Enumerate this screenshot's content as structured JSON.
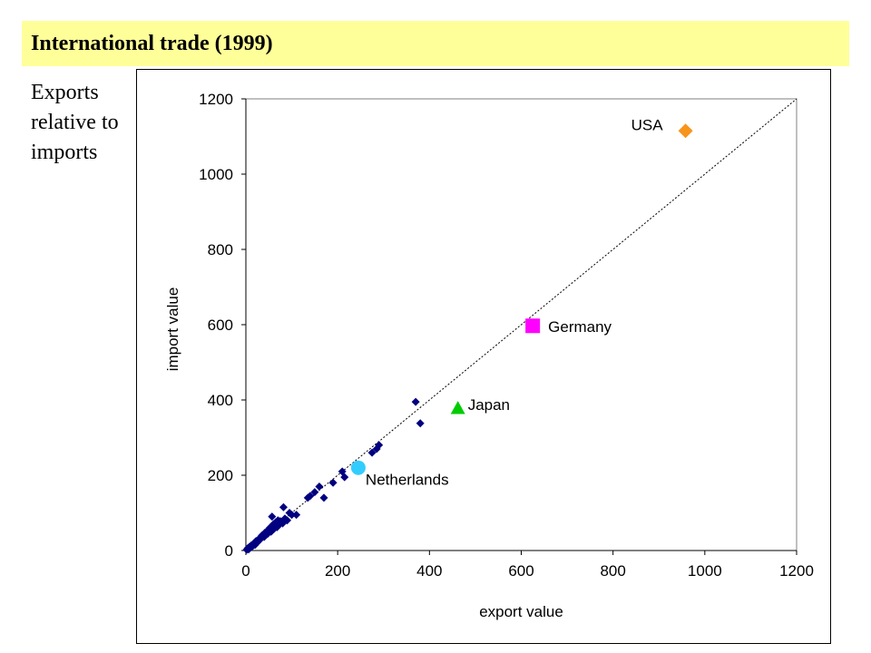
{
  "slide": {
    "title": "International trade (1999)",
    "side_text": [
      "Exports",
      "relative to",
      "imports"
    ]
  },
  "colors": {
    "title_background": "#ffff99",
    "series_other": "#000080",
    "usa": "#f7941d",
    "germany": "#ff00ff",
    "japan": "#00cc00",
    "netherlands": "#33ccff"
  },
  "chart_data": {
    "type": "scatter",
    "xlabel": "export value",
    "ylabel": "import value",
    "xlim": [
      0,
      1200
    ],
    "ylim": [
      0,
      1200
    ],
    "xticks": [
      0,
      200,
      400,
      600,
      800,
      1000,
      1200
    ],
    "yticks": [
      0,
      200,
      400,
      600,
      800,
      1000,
      1200
    ],
    "grid": false,
    "reference_line": {
      "style": "dotted",
      "points": [
        [
          0,
          0
        ],
        [
          1200,
          1200
        ]
      ]
    },
    "series": [
      {
        "marker": "diamond",
        "color": "#000080",
        "points": [
          [
            2,
            2
          ],
          [
            4,
            6
          ],
          [
            6,
            3
          ],
          [
            8,
            10
          ],
          [
            10,
            8
          ],
          [
            12,
            14
          ],
          [
            15,
            12
          ],
          [
            18,
            20
          ],
          [
            20,
            15
          ],
          [
            22,
            25
          ],
          [
            25,
            22
          ],
          [
            28,
            30
          ],
          [
            30,
            28
          ],
          [
            32,
            35
          ],
          [
            35,
            40
          ],
          [
            38,
            42
          ],
          [
            40,
            36
          ],
          [
            42,
            48
          ],
          [
            45,
            50
          ],
          [
            48,
            45
          ],
          [
            50,
            55
          ],
          [
            52,
            60
          ],
          [
            55,
            50
          ],
          [
            57,
            90
          ],
          [
            58,
            65
          ],
          [
            60,
            70
          ],
          [
            62,
            58
          ],
          [
            65,
            75
          ],
          [
            68,
            62
          ],
          [
            70,
            80
          ],
          [
            72,
            68
          ],
          [
            75,
            78
          ],
          [
            80,
            72
          ],
          [
            82,
            115
          ],
          [
            85,
            85
          ],
          [
            90,
            80
          ],
          [
            95,
            100
          ],
          [
            100,
            95
          ],
          [
            110,
            95
          ],
          [
            135,
            140
          ],
          [
            140,
            145
          ],
          [
            150,
            155
          ],
          [
            160,
            170
          ],
          [
            170,
            140
          ],
          [
            190,
            180
          ],
          [
            210,
            210
          ],
          [
            215,
            195
          ],
          [
            275,
            260
          ],
          [
            285,
            270
          ],
          [
            290,
            280
          ],
          [
            370,
            395
          ],
          [
            380,
            338
          ]
        ]
      },
      {
        "name": "USA",
        "marker": "diamond",
        "color": "#f7941d",
        "points": [
          [
            958,
            1115
          ]
        ]
      },
      {
        "name": "Germany",
        "marker": "square",
        "color": "#ff00ff",
        "points": [
          [
            625,
            597
          ]
        ]
      },
      {
        "name": "Japan",
        "marker": "triangle",
        "color": "#00cc00",
        "points": [
          [
            462,
            378
          ]
        ]
      },
      {
        "name": "Netherlands",
        "marker": "circle",
        "color": "#33ccff",
        "points": [
          [
            245,
            220
          ]
        ]
      }
    ]
  }
}
